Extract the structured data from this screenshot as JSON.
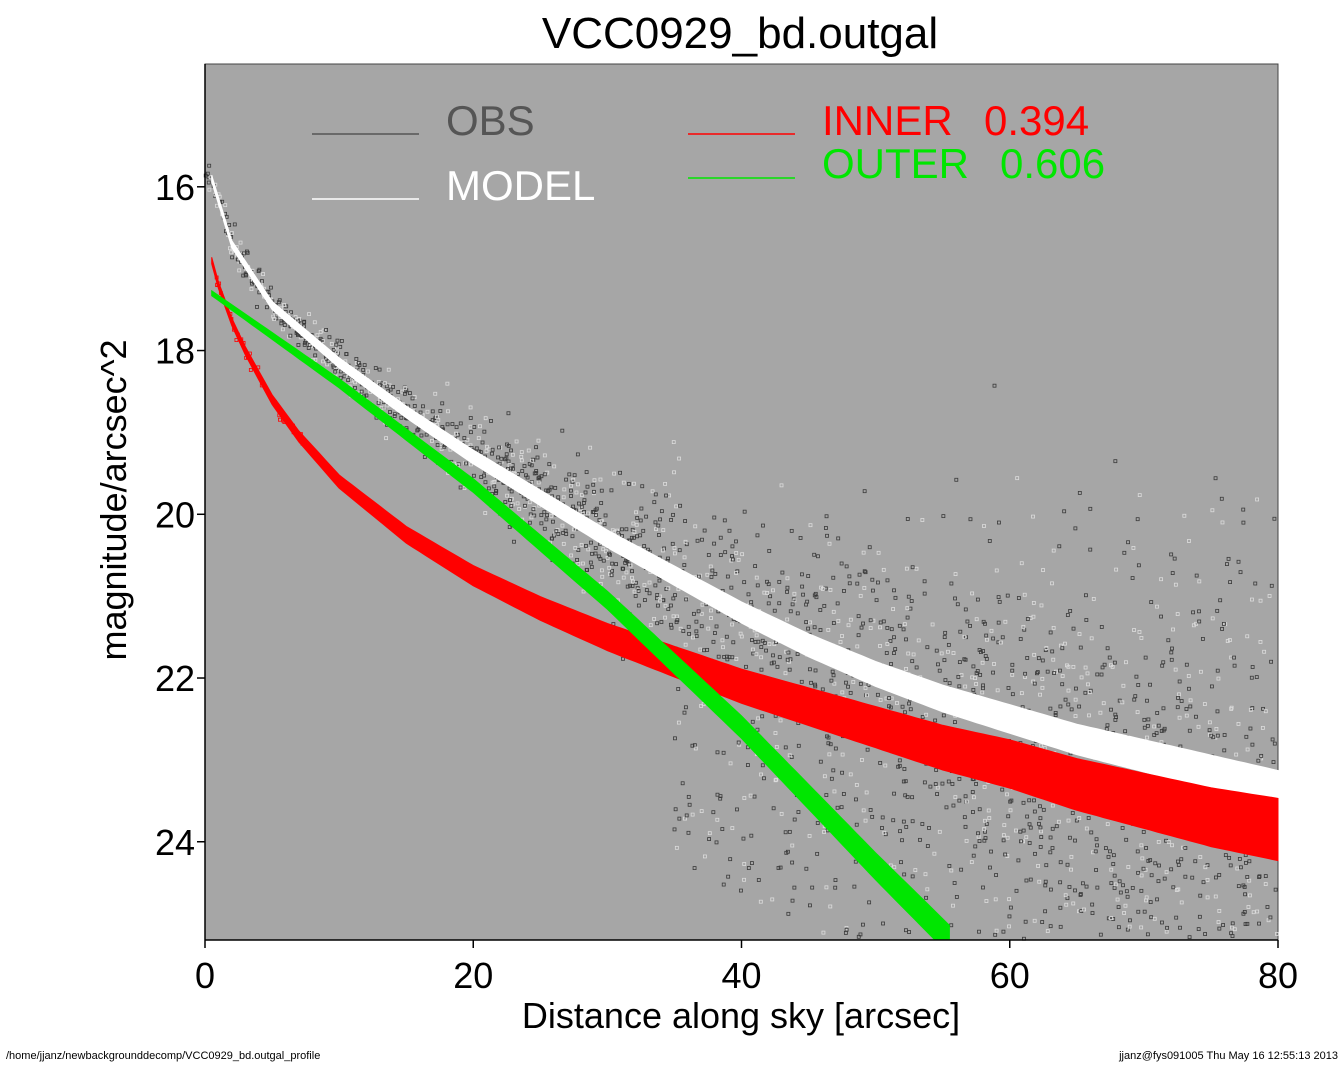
{
  "chart_data": {
    "type": "scatter",
    "title": "VCC0929_bd.outgal",
    "xlabel": "Distance along sky [arcsec]",
    "ylabel": "magnitude/arcsec^2",
    "xlim": [
      0,
      80
    ],
    "ylim": [
      25.2,
      14.5
    ],
    "y_inverted": true,
    "x_ticks": [
      0,
      20,
      40,
      60,
      80
    ],
    "y_ticks": [
      16,
      18,
      20,
      22,
      24
    ],
    "background": "#a6a6a6",
    "grid": false,
    "legend": [
      {
        "label": "OBS",
        "color": "#555555"
      },
      {
        "label": "MODEL",
        "color": "#ffffff"
      },
      {
        "label": "INNER",
        "value": "0.394",
        "color": "#ff0000"
      },
      {
        "label": "OUTER",
        "value": "0.606",
        "color": "#00e600"
      }
    ],
    "series": [
      {
        "name": "OBS",
        "color": "#3a3a3a",
        "description_points": [
          [
            0.2,
            15.0
          ],
          [
            1,
            16.0
          ],
          [
            5,
            17.5
          ],
          [
            10,
            18.4
          ],
          [
            20,
            19.9
          ],
          [
            30,
            20.9
          ],
          [
            40,
            21.5
          ],
          [
            50,
            21.6
          ],
          [
            60,
            22.0
          ],
          [
            70,
            22.3
          ],
          [
            80,
            22.5
          ]
        ]
      },
      {
        "name": "MODEL",
        "color": "#ffffff",
        "points": [
          [
            0.5,
            15.9
          ],
          [
            2,
            16.7
          ],
          [
            5,
            17.45
          ],
          [
            10,
            18.15
          ],
          [
            15,
            18.75
          ],
          [
            20,
            19.3
          ],
          [
            25,
            19.8
          ],
          [
            30,
            20.3
          ],
          [
            35,
            20.75
          ],
          [
            40,
            21.2
          ],
          [
            45,
            21.6
          ],
          [
            50,
            21.95
          ],
          [
            55,
            22.25
          ],
          [
            60,
            22.5
          ],
          [
            65,
            22.75
          ],
          [
            70,
            22.95
          ],
          [
            75,
            23.15
          ],
          [
            80,
            23.35
          ]
        ]
      },
      {
        "name": "INNER",
        "color": "#ff0000",
        "points": [
          [
            0.5,
            16.9
          ],
          [
            1,
            17.2
          ],
          [
            2,
            17.65
          ],
          [
            3,
            18.0
          ],
          [
            5,
            18.6
          ],
          [
            7,
            19.05
          ],
          [
            10,
            19.6
          ],
          [
            15,
            20.25
          ],
          [
            20,
            20.75
          ],
          [
            25,
            21.15
          ],
          [
            30,
            21.5
          ],
          [
            35,
            21.8
          ],
          [
            40,
            22.1
          ],
          [
            45,
            22.35
          ],
          [
            50,
            22.6
          ],
          [
            55,
            22.85
          ],
          [
            60,
            23.05
          ],
          [
            65,
            23.3
          ],
          [
            70,
            23.5
          ],
          [
            75,
            23.7
          ],
          [
            80,
            23.85
          ]
        ]
      },
      {
        "name": "OUTER",
        "color": "#00e600",
        "points": [
          [
            0.5,
            17.3
          ],
          [
            10,
            18.4
          ],
          [
            20,
            19.65
          ],
          [
            30,
            21.05
          ],
          [
            40,
            22.6
          ],
          [
            50,
            24.3
          ],
          [
            55.5,
            25.2
          ]
        ]
      }
    ]
  },
  "footer": {
    "path": "/home/jjanz/newbackgrounddecomp/VCC0929_bd.outgal_profile",
    "stamp": "jjanz@fys091005  Thu May 16 12:55:13 2013"
  }
}
